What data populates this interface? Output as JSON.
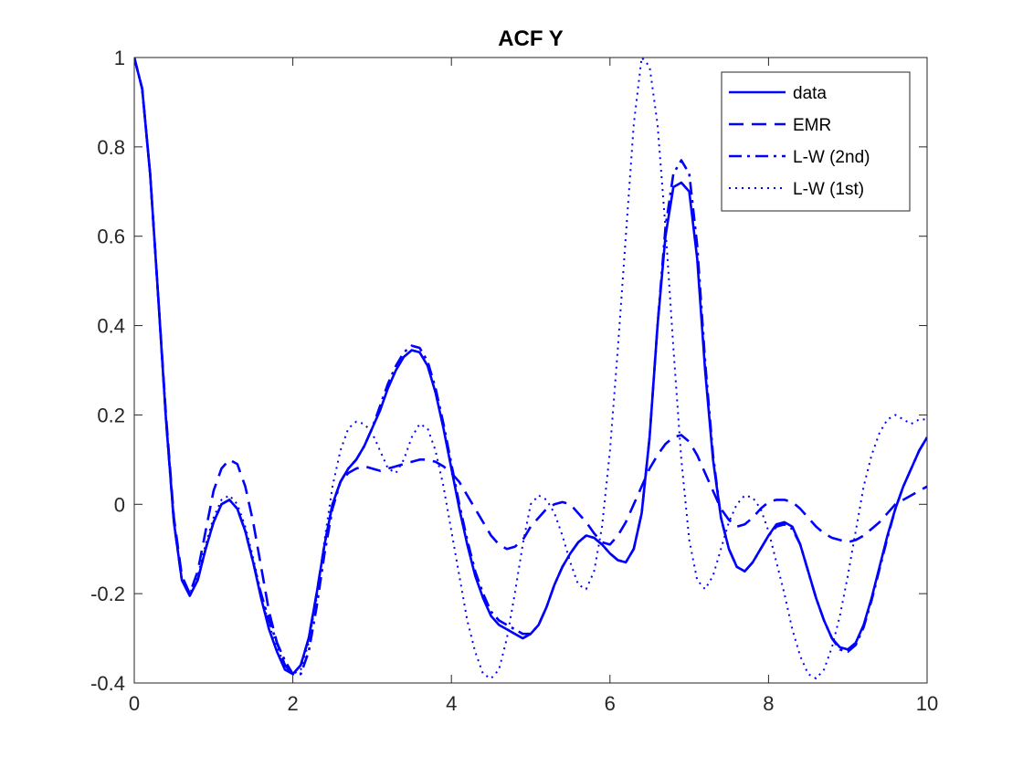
{
  "chart_data": {
    "type": "line",
    "title": "ACF Y",
    "xlabel": "",
    "ylabel": "",
    "xlim": [
      0,
      10
    ],
    "ylim": [
      -0.4,
      1
    ],
    "x_ticks": [
      0,
      2,
      4,
      6,
      8,
      10
    ],
    "y_ticks": [
      -0.4,
      -0.2,
      0,
      0.2,
      0.4,
      0.6,
      0.8,
      1
    ],
    "x_tick_labels": [
      "0",
      "2",
      "4",
      "6",
      "8",
      "10"
    ],
    "y_tick_labels": [
      "-0.4",
      "-0.2",
      "0",
      "0.2",
      "0.4",
      "0.6",
      "0.8",
      "1"
    ],
    "grid": false,
    "legend_position": "top-right",
    "line_color": "#0000ff",
    "series": [
      {
        "name": "data",
        "style": "solid",
        "x": [
          0,
          0.1,
          0.2,
          0.3,
          0.4,
          0.5,
          0.6,
          0.7,
          0.8,
          0.9,
          1.0,
          1.1,
          1.2,
          1.3,
          1.4,
          1.5,
          1.6,
          1.7,
          1.8,
          1.9,
          2.0,
          2.1,
          2.2,
          2.3,
          2.4,
          2.5,
          2.6,
          2.7,
          2.8,
          2.9,
          3.0,
          3.1,
          3.2,
          3.3,
          3.4,
          3.5,
          3.6,
          3.7,
          3.8,
          3.9,
          4.0,
          4.1,
          4.2,
          4.3,
          4.4,
          4.5,
          4.6,
          4.7,
          4.8,
          4.9,
          5.0,
          5.1,
          5.2,
          5.3,
          5.4,
          5.5,
          5.6,
          5.7,
          5.8,
          5.9,
          6.0,
          6.1,
          6.2,
          6.3,
          6.4,
          6.5,
          6.6,
          6.7,
          6.8,
          6.9,
          7.0,
          7.1,
          7.2,
          7.3,
          7.4,
          7.5,
          7.6,
          7.7,
          7.8,
          7.9,
          8.0,
          8.1,
          8.2,
          8.3,
          8.4,
          8.5,
          8.6,
          8.7,
          8.8,
          8.9,
          9.0,
          9.1,
          9.2,
          9.3,
          9.4,
          9.5,
          9.6,
          9.7,
          9.8,
          9.9,
          10.0
        ],
        "y": [
          1.0,
          0.93,
          0.74,
          0.47,
          0.19,
          -0.04,
          -0.17,
          -0.205,
          -0.17,
          -0.1,
          -0.04,
          0.0,
          0.01,
          -0.01,
          -0.06,
          -0.13,
          -0.21,
          -0.28,
          -0.33,
          -0.37,
          -0.38,
          -0.36,
          -0.3,
          -0.2,
          -0.09,
          0.0,
          0.05,
          0.08,
          0.1,
          0.13,
          0.17,
          0.21,
          0.26,
          0.3,
          0.33,
          0.345,
          0.34,
          0.31,
          0.25,
          0.17,
          0.08,
          -0.01,
          -0.09,
          -0.16,
          -0.21,
          -0.25,
          -0.27,
          -0.28,
          -0.29,
          -0.3,
          -0.29,
          -0.27,
          -0.23,
          -0.18,
          -0.14,
          -0.11,
          -0.085,
          -0.07,
          -0.075,
          -0.09,
          -0.11,
          -0.125,
          -0.13,
          -0.1,
          -0.02,
          0.15,
          0.4,
          0.6,
          0.71,
          0.72,
          0.7,
          0.55,
          0.3,
          0.1,
          -0.03,
          -0.1,
          -0.14,
          -0.15,
          -0.13,
          -0.1,
          -0.07,
          -0.045,
          -0.04,
          -0.05,
          -0.09,
          -0.15,
          -0.21,
          -0.26,
          -0.3,
          -0.32,
          -0.325,
          -0.31,
          -0.27,
          -0.21,
          -0.14,
          -0.07,
          -0.01,
          0.04,
          0.08,
          0.12,
          0.15
        ]
      },
      {
        "name": "EMR",
        "style": "dashed",
        "x": [
          0,
          0.1,
          0.2,
          0.3,
          0.4,
          0.5,
          0.6,
          0.7,
          0.8,
          0.9,
          1.0,
          1.1,
          1.2,
          1.3,
          1.4,
          1.5,
          1.6,
          1.7,
          1.8,
          1.9,
          2.0,
          2.1,
          2.2,
          2.3,
          2.4,
          2.5,
          2.6,
          2.7,
          2.8,
          2.9,
          3.0,
          3.1,
          3.2,
          3.3,
          3.4,
          3.5,
          3.6,
          3.7,
          3.8,
          3.9,
          4.0,
          4.1,
          4.2,
          4.3,
          4.4,
          4.5,
          4.6,
          4.7,
          4.8,
          4.9,
          5.0,
          5.1,
          5.2,
          5.3,
          5.4,
          5.5,
          5.6,
          5.7,
          5.8,
          5.9,
          6.0,
          6.1,
          6.2,
          6.3,
          6.4,
          6.5,
          6.6,
          6.7,
          6.8,
          6.9,
          7.0,
          7.1,
          7.2,
          7.3,
          7.4,
          7.5,
          7.6,
          7.7,
          7.8,
          7.9,
          8.0,
          8.1,
          8.2,
          8.3,
          8.4,
          8.5,
          8.6,
          8.7,
          8.8,
          8.9,
          9.0,
          9.1,
          9.2,
          9.3,
          9.4,
          9.5,
          9.6,
          9.7,
          9.8,
          9.9,
          10.0
        ],
        "y": [
          1.0,
          0.93,
          0.74,
          0.47,
          0.2,
          -0.03,
          -0.16,
          -0.2,
          -0.15,
          -0.06,
          0.03,
          0.08,
          0.1,
          0.09,
          0.04,
          -0.04,
          -0.14,
          -0.24,
          -0.31,
          -0.36,
          -0.38,
          -0.36,
          -0.3,
          -0.2,
          -0.09,
          0.0,
          0.05,
          0.07,
          0.08,
          0.085,
          0.08,
          0.075,
          0.08,
          0.085,
          0.09,
          0.095,
          0.1,
          0.1,
          0.095,
          0.085,
          0.07,
          0.05,
          0.02,
          -0.01,
          -0.04,
          -0.07,
          -0.09,
          -0.1,
          -0.095,
          -0.08,
          -0.05,
          -0.03,
          -0.01,
          0.0,
          0.005,
          0.0,
          -0.02,
          -0.04,
          -0.065,
          -0.085,
          -0.09,
          -0.07,
          -0.04,
          0.0,
          0.04,
          0.08,
          0.11,
          0.135,
          0.15,
          0.155,
          0.14,
          0.11,
          0.07,
          0.03,
          -0.01,
          -0.035,
          -0.05,
          -0.045,
          -0.03,
          -0.01,
          0.005,
          0.01,
          0.01,
          0.005,
          -0.01,
          -0.03,
          -0.05,
          -0.065,
          -0.075,
          -0.08,
          -0.085,
          -0.08,
          -0.07,
          -0.055,
          -0.04,
          -0.02,
          0.0,
          0.01,
          0.02,
          0.03,
          0.04
        ]
      },
      {
        "name": "L-W (2nd)",
        "style": "dashdot",
        "x": [
          0,
          0.1,
          0.2,
          0.3,
          0.4,
          0.5,
          0.6,
          0.7,
          0.8,
          0.9,
          1.0,
          1.1,
          1.2,
          1.3,
          1.4,
          1.5,
          1.6,
          1.7,
          1.8,
          1.9,
          2.0,
          2.1,
          2.2,
          2.3,
          2.4,
          2.5,
          2.6,
          2.7,
          2.8,
          2.9,
          3.0,
          3.1,
          3.2,
          3.3,
          3.4,
          3.5,
          3.6,
          3.7,
          3.8,
          3.9,
          4.0,
          4.1,
          4.2,
          4.3,
          4.4,
          4.5,
          4.6,
          4.7,
          4.8,
          4.9,
          5.0,
          5.1,
          5.2,
          5.3,
          5.4,
          5.5,
          5.6,
          5.7,
          5.8,
          5.9,
          6.0,
          6.1,
          6.2,
          6.3,
          6.4,
          6.5,
          6.6,
          6.7,
          6.8,
          6.9,
          7.0,
          7.1,
          7.2,
          7.3,
          7.4,
          7.5,
          7.6,
          7.7,
          7.8,
          7.9,
          8.0,
          8.1,
          8.2,
          8.3,
          8.4,
          8.5,
          8.6,
          8.7,
          8.8,
          8.9,
          9.0,
          9.1,
          9.2,
          9.3,
          9.4,
          9.5,
          9.6,
          9.7,
          9.8,
          9.9,
          10.0
        ],
        "y": [
          1.0,
          0.93,
          0.74,
          0.47,
          0.19,
          -0.04,
          -0.17,
          -0.2,
          -0.17,
          -0.1,
          -0.04,
          0.0,
          0.01,
          -0.01,
          -0.06,
          -0.13,
          -0.2,
          -0.26,
          -0.31,
          -0.35,
          -0.38,
          -0.38,
          -0.33,
          -0.23,
          -0.11,
          -0.01,
          0.05,
          0.08,
          0.1,
          0.13,
          0.17,
          0.22,
          0.27,
          0.31,
          0.34,
          0.355,
          0.35,
          0.32,
          0.26,
          0.18,
          0.09,
          0.0,
          -0.08,
          -0.15,
          -0.2,
          -0.24,
          -0.26,
          -0.27,
          -0.28,
          -0.29,
          -0.29,
          -0.27,
          -0.23,
          -0.18,
          -0.14,
          -0.11,
          -0.085,
          -0.07,
          -0.075,
          -0.09,
          -0.11,
          -0.125,
          -0.13,
          -0.1,
          -0.02,
          0.15,
          0.4,
          0.62,
          0.74,
          0.77,
          0.74,
          0.58,
          0.32,
          0.11,
          -0.03,
          -0.1,
          -0.14,
          -0.15,
          -0.13,
          -0.1,
          -0.07,
          -0.05,
          -0.045,
          -0.055,
          -0.09,
          -0.15,
          -0.21,
          -0.26,
          -0.3,
          -0.325,
          -0.33,
          -0.315,
          -0.275,
          -0.215,
          -0.145,
          -0.075,
          -0.01,
          0.04,
          0.08,
          0.12,
          0.15
        ]
      },
      {
        "name": "L-W (1st)",
        "style": "dotted",
        "x": [
          0,
          0.1,
          0.2,
          0.3,
          0.4,
          0.5,
          0.6,
          0.7,
          0.8,
          0.9,
          1.0,
          1.1,
          1.2,
          1.3,
          1.4,
          1.5,
          1.6,
          1.7,
          1.8,
          1.9,
          2.0,
          2.1,
          2.2,
          2.3,
          2.4,
          2.5,
          2.6,
          2.7,
          2.8,
          2.9,
          3.0,
          3.1,
          3.2,
          3.3,
          3.4,
          3.5,
          3.6,
          3.7,
          3.8,
          3.9,
          4.0,
          4.1,
          4.2,
          4.3,
          4.4,
          4.5,
          4.6,
          4.7,
          4.8,
          4.9,
          5.0,
          5.1,
          5.2,
          5.3,
          5.4,
          5.5,
          5.6,
          5.7,
          5.8,
          5.9,
          6.0,
          6.1,
          6.2,
          6.3,
          6.4,
          6.5,
          6.6,
          6.7,
          6.8,
          6.9,
          7.0,
          7.1,
          7.2,
          7.3,
          7.4,
          7.5,
          7.6,
          7.7,
          7.8,
          7.9,
          8.0,
          8.1,
          8.2,
          8.3,
          8.4,
          8.5,
          8.6,
          8.7,
          8.8,
          8.9,
          9.0,
          9.1,
          9.2,
          9.3,
          9.4,
          9.5,
          9.6,
          9.7,
          9.8,
          9.9,
          10.0
        ],
        "y": [
          1.0,
          0.93,
          0.74,
          0.47,
          0.19,
          -0.04,
          -0.17,
          -0.2,
          -0.16,
          -0.09,
          -0.03,
          0.01,
          0.02,
          0.0,
          -0.05,
          -0.12,
          -0.2,
          -0.27,
          -0.32,
          -0.36,
          -0.38,
          -0.37,
          -0.31,
          -0.21,
          -0.08,
          0.04,
          0.12,
          0.17,
          0.185,
          0.18,
          0.16,
          0.12,
          0.08,
          0.07,
          0.1,
          0.15,
          0.18,
          0.17,
          0.12,
          0.04,
          -0.06,
          -0.16,
          -0.26,
          -0.33,
          -0.38,
          -0.39,
          -0.37,
          -0.3,
          -0.2,
          -0.09,
          0.0,
          0.02,
          0.01,
          -0.02,
          -0.07,
          -0.13,
          -0.18,
          -0.19,
          -0.15,
          -0.05,
          0.12,
          0.35,
          0.6,
          0.85,
          1.0,
          0.98,
          0.85,
          0.62,
          0.35,
          0.1,
          -0.08,
          -0.17,
          -0.19,
          -0.16,
          -0.1,
          -0.04,
          0.0,
          0.02,
          0.015,
          -0.01,
          -0.06,
          -0.13,
          -0.2,
          -0.28,
          -0.34,
          -0.38,
          -0.39,
          -0.37,
          -0.32,
          -0.25,
          -0.16,
          -0.06,
          0.04,
          0.11,
          0.16,
          0.19,
          0.2,
          0.19,
          0.18,
          0.19,
          0.19
        ]
      }
    ]
  }
}
